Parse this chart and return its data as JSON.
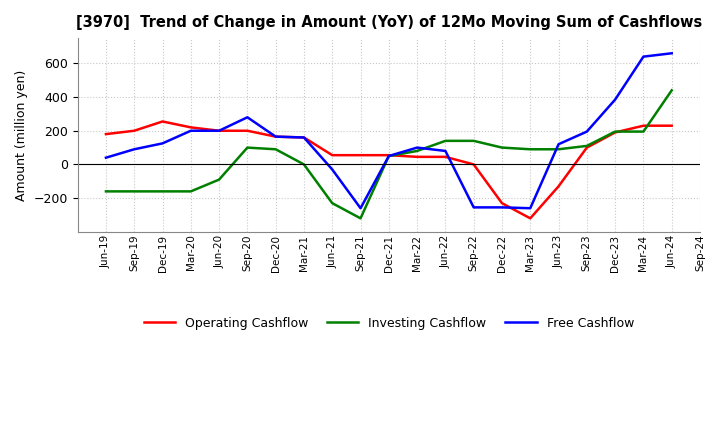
{
  "title": "[3970]  Trend of Change in Amount (YoY) of 12Mo Moving Sum of Cashflows",
  "ylabel": "Amount (million yen)",
  "x_labels": [
    "Jun-19",
    "Sep-19",
    "Dec-19",
    "Mar-20",
    "Jun-20",
    "Sep-20",
    "Dec-20",
    "Mar-21",
    "Jun-21",
    "Sep-21",
    "Dec-21",
    "Mar-22",
    "Jun-22",
    "Sep-22",
    "Dec-22",
    "Mar-23",
    "Jun-23",
    "Sep-23",
    "Dec-23",
    "Mar-24",
    "Jun-24",
    "Sep-24"
  ],
  "operating": [
    180,
    200,
    255,
    220,
    200,
    200,
    165,
    160,
    55,
    55,
    55,
    45,
    45,
    0,
    -230,
    -320,
    -130,
    100,
    190,
    230,
    230,
    null
  ],
  "investing": [
    -160,
    -160,
    -160,
    -160,
    -90,
    100,
    90,
    0,
    -230,
    -320,
    50,
    80,
    140,
    140,
    100,
    90,
    90,
    110,
    195,
    195,
    440,
    null
  ],
  "free": [
    40,
    90,
    125,
    200,
    200,
    280,
    165,
    160,
    -30,
    -260,
    50,
    100,
    80,
    -255,
    -255,
    -260,
    120,
    195,
    385,
    640,
    660,
    null
  ],
  "colors": {
    "operating": "#ff0000",
    "investing": "#008000",
    "free": "#0000ff"
  },
  "ylim": [
    -400,
    750
  ],
  "yticks": [
    -200,
    0,
    200,
    400,
    600
  ],
  "legend_labels": [
    "Operating Cashflow",
    "Investing Cashflow",
    "Free Cashflow"
  ],
  "bg_color": "#ffffff",
  "grid_color": "#c8c8c8"
}
